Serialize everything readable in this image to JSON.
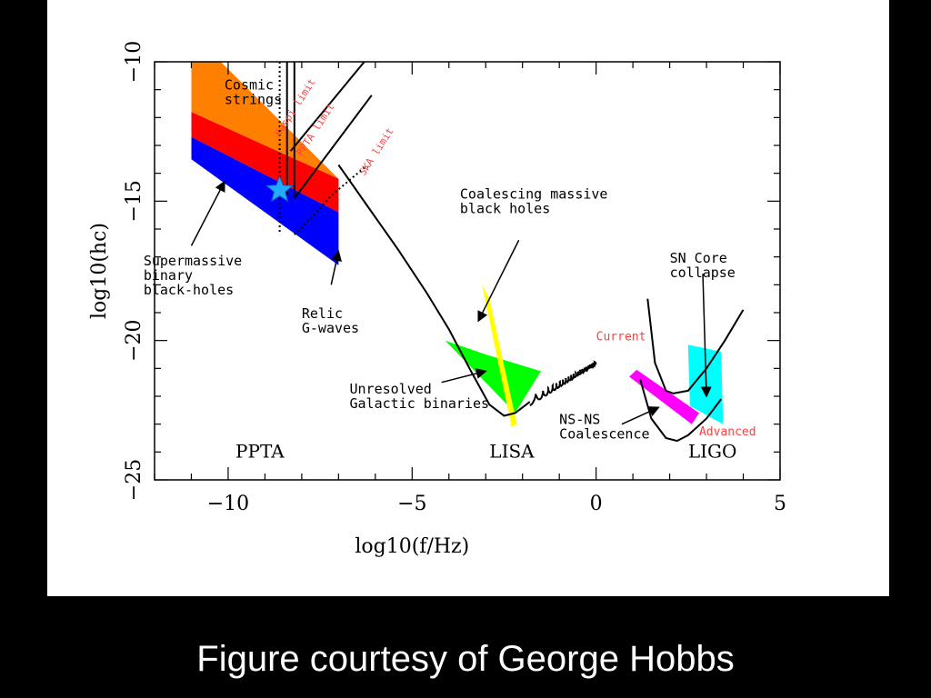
{
  "slide": {
    "caption": "Figure courtesy of George Hobbs",
    "background": "#000000"
  },
  "chart_data": {
    "type": "line",
    "title": "",
    "xlabel": "log10(f/Hz)",
    "ylabel": "log10(hc)",
    "xlim": [
      -12,
      5
    ],
    "ylim": [
      -25,
      -10
    ],
    "x_ticks": [
      -10,
      -5,
      0,
      5
    ],
    "y_ticks": [
      -10,
      -15,
      -20,
      -25
    ],
    "grid": false,
    "legend": "none",
    "detector_labels": [
      {
        "text": "PPTA",
        "x": -9.8,
        "y": -24.2
      },
      {
        "text": "LISA",
        "x": -2.9,
        "y": -24.2
      },
      {
        "text": "LIGO",
        "x": 2.5,
        "y": -24.2
      }
    ],
    "regions": [
      {
        "name": "Cosmic strings",
        "color": "#ff8000",
        "polygon": [
          [
            -11,
            -10
          ],
          [
            -10.2,
            -10
          ],
          [
            -7,
            -14.2
          ],
          [
            -11,
            -11.8
          ]
        ]
      },
      {
        "name": "cosmic-strings-red",
        "color": "#ff0000",
        "polygon": [
          [
            -11,
            -11.8
          ],
          [
            -7,
            -14.2
          ],
          [
            -7,
            -15.4
          ],
          [
            -11,
            -12.7
          ]
        ]
      },
      {
        "name": "Supermassive binary black-holes",
        "color": "#0000ff",
        "polygon": [
          [
            -11,
            -12.7
          ],
          [
            -7,
            -15.4
          ],
          [
            -7,
            -17.3
          ],
          [
            -11,
            -13.5
          ]
        ]
      },
      {
        "name": "Unresolved Galactic binaries",
        "color": "#00ff00",
        "polygon": [
          [
            -4.1,
            -20
          ],
          [
            -3,
            -20.5
          ],
          [
            -1.5,
            -21.1
          ],
          [
            -2.2,
            -22.6
          ]
        ]
      },
      {
        "name": "Coalescing massive black holes",
        "color": "#ffff00",
        "polygon": [
          [
            -3.1,
            -18
          ],
          [
            -2.9,
            -18.5
          ],
          [
            -2.15,
            -23
          ],
          [
            -2.3,
            -23.1
          ]
        ]
      },
      {
        "name": "NS-NS Coalescence",
        "color": "#ff00ff",
        "polygon": [
          [
            0.9,
            -21.3
          ],
          [
            1.1,
            -21.05
          ],
          [
            2.8,
            -22.6
          ],
          [
            2.6,
            -23
          ]
        ]
      },
      {
        "name": "SN Core collapse",
        "color": "#00ffff",
        "polygon": [
          [
            2.5,
            -20.15
          ],
          [
            3.4,
            -20.4
          ],
          [
            3.45,
            -23
          ],
          [
            2.55,
            -22.35
          ]
        ]
      }
    ],
    "curves": [
      {
        "name": "LISA sensitivity",
        "x": [
          -7,
          -6.2,
          -5.4,
          -4.6,
          -4.0,
          -3.4,
          -2.9,
          -2.5,
          -2.2,
          -2.0,
          -1.8
        ],
        "y": [
          -13.7,
          -15.2,
          -16.7,
          -18.3,
          -19.6,
          -21.1,
          -22.3,
          -22.7,
          -22.6,
          -22.4,
          -22.2
        ]
      },
      {
        "name": "LIGO current",
        "x": [
          1.4,
          1.6,
          1.9,
          2.1,
          2.5,
          3.0,
          3.5,
          4.0
        ],
        "y": [
          -18.5,
          -20.8,
          -21.8,
          -21.9,
          -21.8,
          -21.0,
          -20.0,
          -18.9
        ]
      },
      {
        "name": "LIGO advanced",
        "x": [
          1.2,
          1.5,
          1.9,
          2.2,
          2.5,
          3.0,
          3.4
        ],
        "y": [
          -21.4,
          -22.8,
          -23.5,
          -23.6,
          -23.4,
          -22.8,
          -22.1
        ]
      },
      {
        "name": "PPTA current a",
        "x": [
          -8.4,
          -8.4
        ],
        "y": [
          -10,
          -14.8
        ]
      },
      {
        "name": "PPTA current b",
        "x": [
          -8.2,
          -8.2
        ],
        "y": [
          -10,
          -14.9
        ]
      },
      {
        "name": "Kaspi limit",
        "x": [
          -8.3,
          -6.3
        ],
        "y": [
          -13.2,
          -10
        ]
      },
      {
        "name": "PPTA limit",
        "x": [
          -8.2,
          -6.1
        ],
        "y": [
          -14.9,
          -11.2
        ]
      }
    ],
    "dotted_curves": [
      {
        "name": "PPTA dotted",
        "x": [
          -8.6,
          -8.6,
          -8.6
        ],
        "y": [
          -10,
          -13,
          -16.2
        ]
      },
      {
        "name": "SKA limit",
        "x": [
          -8.2,
          -7.6,
          -7.2,
          -6.3,
          -6.2
        ],
        "y": [
          -16.2,
          -15.4,
          -14.8,
          -13.8,
          -13.8
        ]
      }
    ],
    "wiggle": {
      "x": [
        -1.8,
        0
      ],
      "y": [
        -22.2,
        -20.8
      ]
    },
    "marker": {
      "name": "star",
      "x": -8.6,
      "y": -14.6,
      "color": "#22aaff"
    },
    "annotations": [
      {
        "lines": [
          "Cosmic",
          "strings"
        ],
        "x": -10.1,
        "y": -11,
        "anchor": "start",
        "color": "#000000"
      },
      {
        "lines": [
          "Supermassive",
          "binary",
          "black-holes"
        ],
        "x": -12.3,
        "y": -17.3,
        "anchor": "start",
        "color": "#000000"
      },
      {
        "lines": [
          "Relic",
          "G-waves"
        ],
        "x": -8.0,
        "y": -19.2,
        "anchor": "start",
        "color": "#000000"
      },
      {
        "lines": [
          "Coalescing massive",
          "black holes"
        ],
        "x": -3.7,
        "y": -14.9,
        "anchor": "start",
        "color": "#000000"
      },
      {
        "lines": [
          "Unresolved",
          "Galactic binaries"
        ],
        "x": -6.7,
        "y": -21.9,
        "anchor": "start",
        "color": "#000000"
      },
      {
        "lines": [
          "SN Core",
          "collapse"
        ],
        "x": 2.0,
        "y": -17.2,
        "anchor": "start",
        "color": "#000000"
      },
      {
        "lines": [
          "NS-NS",
          "Coalescence"
        ],
        "x": -1.0,
        "y": -23.0,
        "anchor": "start",
        "color": "#000000"
      },
      {
        "lines": [
          "Current"
        ],
        "x": 0.0,
        "y": -20.0,
        "anchor": "start",
        "color": "#ff4040"
      },
      {
        "lines": [
          "Advanced"
        ],
        "x": 2.8,
        "y": -23.4,
        "anchor": "start",
        "color": "#ff4040"
      }
    ],
    "rotated_labels": [
      {
        "text": "Kaspi limit",
        "x": -8.6,
        "y": -12.7,
        "color": "#ff4040"
      },
      {
        "text": "PPTA limit",
        "x": -8.0,
        "y": -13.4,
        "color": "#ff4040"
      },
      {
        "text": "SKA limit",
        "x": -6.3,
        "y": -14.1,
        "color": "#ff4040"
      }
    ],
    "arrows": [
      {
        "from": [
          -11.0,
          -16.6
        ],
        "to": [
          -10.1,
          -14.3
        ]
      },
      {
        "from": [
          -7.2,
          -18.0
        ],
        "to": [
          -7.0,
          -16.8
        ]
      },
      {
        "from": [
          -2.1,
          -16.4
        ],
        "to": [
          -3.2,
          -19.3
        ]
      },
      {
        "from": [
          -4.2,
          -21.5
        ],
        "to": [
          -3.0,
          -21.1
        ]
      },
      {
        "from": [
          2.9,
          -17.6
        ],
        "to": [
          3.0,
          -22.0
        ]
      },
      {
        "from": [
          0.7,
          -23.0
        ],
        "to": [
          1.7,
          -22.4
        ]
      }
    ]
  }
}
